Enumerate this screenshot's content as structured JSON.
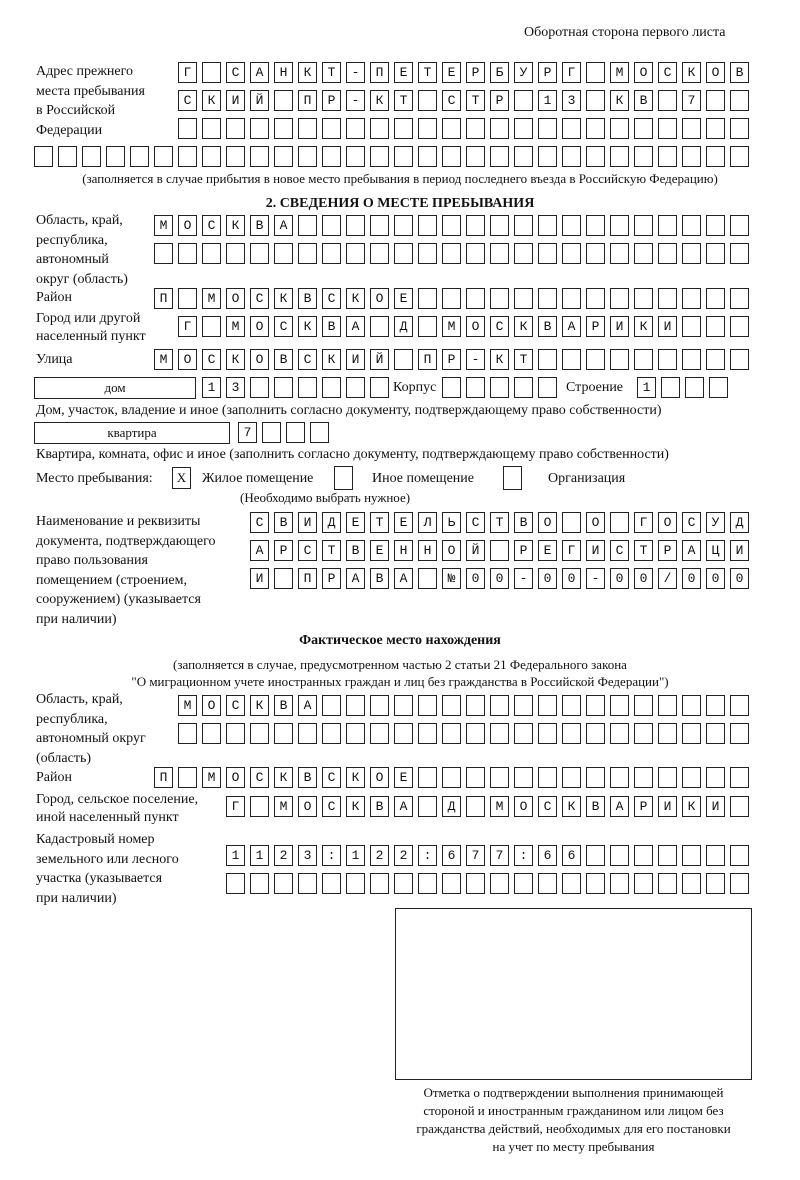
{
  "header": "Оборотная сторона первого листа",
  "prev_address": {
    "label": "Адрес прежнего\nместа пребывания\nв Российской\nФедерации",
    "rows": [
      "Г САНКТ-ПЕТЕРБУРГ МОСКОВ",
      "СКИЙ ПР-КТ СТР 13 КВ 7  ",
      "",
      ""
    ],
    "note": "(заполняется в случае прибытия в новое место пребывания в период последнего въезда в Российскую Федерацию)"
  },
  "section2": {
    "title": "2. СВЕДЕНИЯ О МЕСТЕ ПРЕБЫВАНИЯ",
    "region_label": "Область, край,\nреспублика,\nавтономный\nокруг (область)",
    "region_rows": [
      "МОСКВА",
      ""
    ],
    "district_label": "Район",
    "district": "П МОСКВСКОЕ",
    "city_label": "Город или другой\nнаселенный пункт",
    "city": "Г МОСКВА Д МОСКВАРИКИ",
    "street_label": "Улица",
    "street": "МОСКОВСКИЙ ПР-КТ",
    "house_type": "дом",
    "house": "13",
    "korpus_label": "Корпус",
    "korpus": "",
    "building_label": "Строение",
    "building": "1",
    "house_note": "Дом, участок, владение и иное (заполнить согласно документу, подтверждающему право собственности)",
    "flat_type": "квартира",
    "flat": "7",
    "flat_note": "Квартира, комната, офис и иное (заполнить согласно документу, подтверждающему право собственности)",
    "stay_label": "Место пребывания:",
    "stay_options": [
      {
        "label": "Жилое помещение",
        "mark": "X"
      },
      {
        "label": "Иное помещение",
        "mark": ""
      },
      {
        "label": "Организация",
        "mark": ""
      }
    ],
    "stay_note": "(Необходимо выбрать нужное)",
    "doc_label": "Наименование и реквизиты\nдокумента, подтверждающего\nправо пользования\nпомещением (строением,\nсооружением) (указывается\nпри наличии)",
    "doc_rows": [
      "СВИДЕТЕЛЬСТВО О ГОСУД",
      "АРСТВЕННОЙ РЕГИСТРАЦИ",
      "И ПРАВА №00-00-00/000"
    ]
  },
  "actual": {
    "title": "Фактическое место нахождения",
    "subtitle1": "(заполняется в случае, предусмотренном частью 2 статьи 21 Федерального закона",
    "subtitle2": "\"О миграционном учете иностранных граждан и лиц без гражданства в Российской Федерации\")",
    "region_label": "Область, край,\nреспублика,\nавтономный округ\n(область)",
    "region_rows": [
      "МОСКВА",
      ""
    ],
    "district_label": "Район",
    "district": "П МОСКВСКОЕ",
    "city_label": "Город, сельское поселение,\nиной населенный пункт",
    "city": "Г МОСКВА Д МОСКВАРИКИ",
    "cadastre_label": "Кадастровый номер\nземельного или лесного\nучастка (указывается\nпри наличии)",
    "cadastre_rows": [
      "1123:122:677:66",
      ""
    ]
  },
  "stamp_caption": "Отметка о подтверждении выполнения принимающей\nстороной и иностранным гражданином или лицом без\nгражданства действий, необходимых для его постановки\nна учет по месту пребывания"
}
